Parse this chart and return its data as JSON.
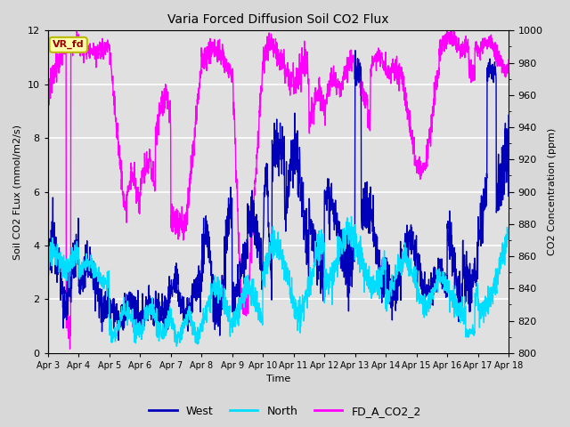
{
  "title": "Varia Forced Diffusion Soil CO2 Flux",
  "xlabel": "Time",
  "ylabel_left": "Soil CO2 FLux (mmol/m2/s)",
  "ylabel_right": "CO2 Concentration (ppm)",
  "ylim_left": [
    0,
    12
  ],
  "ylim_right": [
    800,
    1000
  ],
  "yticks_left": [
    0,
    2,
    4,
    6,
    8,
    10,
    12
  ],
  "yticks_right": [
    800,
    820,
    840,
    860,
    880,
    900,
    920,
    940,
    960,
    980,
    1000
  ],
  "xtick_labels": [
    "Apr 3",
    "Apr 4",
    "Apr 5",
    "Apr 6",
    "Apr 7",
    "Apr 8",
    "Apr 9",
    "Apr 10",
    "Apr 11",
    "Apr 12",
    "Apr 13",
    "Apr 14",
    "Apr 15",
    "Apr 16",
    "Apr 17",
    "Apr 18"
  ],
  "bg_color": "#d8d8d8",
  "plot_bg_color": "#e0e0e0",
  "grid_color": "#ffffff",
  "west_color": "#0000bb",
  "north_color": "#00ddff",
  "co2_color": "#ff00ff",
  "legend_labels": [
    "West",
    "North",
    "FD_A_CO2_2"
  ],
  "annotation_text": "VR_fd",
  "annotation_bg": "#ffffaa",
  "annotation_border": "#bbbb00",
  "annotation_color": "#990000",
  "n_points": 2000,
  "n_days": 15
}
